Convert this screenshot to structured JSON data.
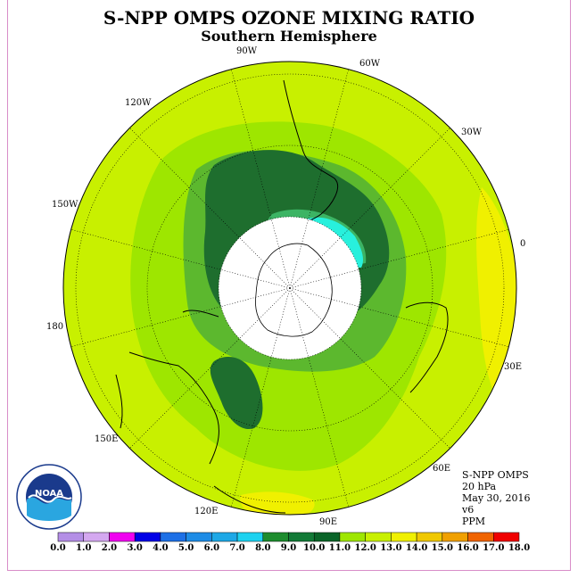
{
  "title": "S-NPP OMPS OZONE MIXING RATIO",
  "subtitle": "Southern Hemisphere",
  "longitude_labels": {
    "w90": "90W",
    "w60": "60W",
    "w120": "120W",
    "w30": "30W",
    "w150": "150W",
    "e0": "0",
    "deg180": "180",
    "e30": "30E",
    "e150": "150E",
    "e60": "60E",
    "e120": "120E",
    "e90": "90E"
  },
  "info": {
    "instrument": "S-NPP OMPS",
    "level": "20 hPa",
    "date": "May 30, 2016",
    "version": "v6",
    "units": "PPM"
  },
  "logo": {
    "text": "NOAA",
    "ring_text": "NATIONAL OCEANIC AND ATMOSPHERIC ADMINISTRATION · U.S. DEPARTMENT OF COMMERCE"
  },
  "colorbar": {
    "ticks": [
      "0.0",
      "1.0",
      "2.0",
      "3.0",
      "4.0",
      "5.0",
      "6.0",
      "7.0",
      "8.0",
      "9.0",
      "10.0",
      "11.0",
      "12.0",
      "13.0",
      "14.0",
      "15.0",
      "16.0",
      "17.0",
      "18.0"
    ],
    "colors": [
      "#b48ee6",
      "#d4a8f0",
      "#f000f0",
      "#0000e6",
      "#1e70e6",
      "#1e8ce6",
      "#1ea8e6",
      "#1ed2f0",
      "#1e8c2e",
      "#137a37",
      "#0a6428",
      "#9ee600",
      "#c8f000",
      "#f0f000",
      "#f0c800",
      "#f0a000",
      "#f06400",
      "#f00000",
      "#8c5a3c"
    ]
  },
  "map_colors": {
    "level_11_12": "#c8f000",
    "level_10_11": "#9ee600",
    "level_9_10": "#5cb82e",
    "level_8_9": "#1e6e2e",
    "level_7_8": "#3cb464",
    "level_6_7": "#28f0dc",
    "level_12_13": "#f0f000",
    "masked_polar": "#ffffff"
  }
}
